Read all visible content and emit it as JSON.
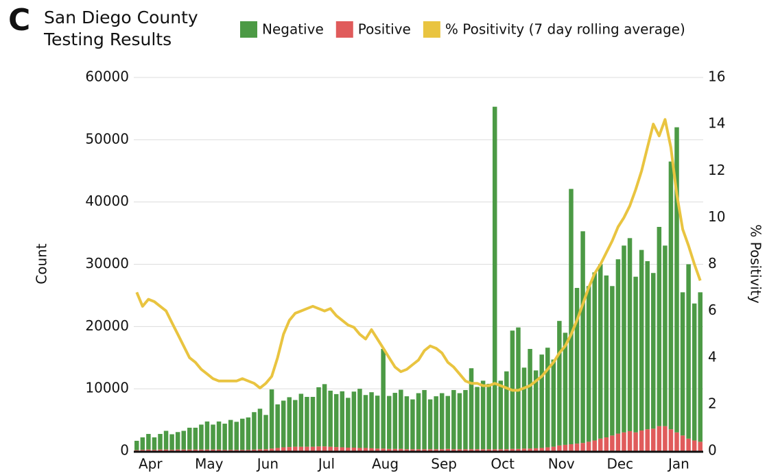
{
  "chart_data": {
    "type": "bar",
    "panel_label": "C",
    "title": "San Diego County Testing Results",
    "y_label": "Count",
    "y2_label": "% Positivity",
    "grid": true,
    "stacked": true,
    "categories": [
      "Apr",
      null,
      null,
      null,
      null,
      null,
      null,
      null,
      null,
      null,
      "May",
      null,
      null,
      null,
      null,
      null,
      null,
      null,
      null,
      null,
      "Jun",
      null,
      null,
      null,
      null,
      null,
      null,
      null,
      null,
      null,
      "Jul",
      null,
      null,
      null,
      null,
      null,
      null,
      null,
      null,
      null,
      "Aug",
      null,
      null,
      null,
      null,
      null,
      null,
      null,
      null,
      null,
      "Sep",
      null,
      null,
      null,
      null,
      null,
      null,
      null,
      null,
      null,
      "Oct",
      null,
      null,
      null,
      null,
      null,
      null,
      null,
      null,
      null,
      "Nov",
      null,
      null,
      null,
      null,
      null,
      null,
      null,
      null,
      null,
      "Dec",
      null,
      null,
      null,
      null,
      null,
      null,
      null,
      null,
      null,
      "Jan",
      null,
      null,
      null,
      null,
      null,
      null
    ],
    "series": [
      {
        "name": "Negative",
        "color": "#4c9a45",
        "values": [
          1500,
          2000,
          2500,
          2000,
          2500,
          3000,
          2500,
          2800,
          3000,
          3500,
          3500,
          4000,
          4500,
          4000,
          4500,
          4200,
          4800,
          4500,
          5000,
          5200,
          6000,
          6500,
          5500,
          9500,
          7000,
          7500,
          8000,
          7500,
          8500,
          8000,
          8000,
          9500,
          10000,
          9000,
          8500,
          9000,
          8000,
          9000,
          9500,
          8500,
          9000,
          8500,
          16000,
          8500,
          9000,
          9500,
          8500,
          8000,
          9000,
          9500,
          8000,
          8500,
          9000,
          8500,
          9500,
          9000,
          9500,
          13000,
          10000,
          11000,
          10500,
          55000,
          11000,
          12500,
          19000,
          19500,
          13000,
          16000,
          12500,
          15000,
          16000,
          14000,
          20000,
          18000,
          41000,
          25000,
          34000,
          25000,
          27000,
          28000,
          26000,
          24000,
          28000,
          30000,
          31000,
          25000,
          29000,
          27000,
          25000,
          32000,
          29000,
          43000,
          49000,
          23000,
          28000,
          22000,
          24000
        ]
      },
      {
        "name": "Positive",
        "color": "#e05b5b",
        "values": [
          150,
          200,
          250,
          200,
          250,
          250,
          200,
          250,
          250,
          250,
          250,
          250,
          250,
          250,
          250,
          200,
          200,
          200,
          200,
          200,
          250,
          300,
          300,
          400,
          500,
          600,
          650,
          700,
          700,
          700,
          700,
          750,
          750,
          700,
          650,
          600,
          550,
          550,
          500,
          500,
          450,
          400,
          400,
          350,
          350,
          350,
          300,
          300,
          300,
          300,
          300,
          300,
          300,
          350,
          300,
          300,
          300,
          300,
          300,
          300,
          300,
          300,
          300,
          300,
          350,
          350,
          400,
          400,
          450,
          500,
          600,
          700,
          900,
          1000,
          1100,
          1200,
          1300,
          1500,
          1700,
          2000,
          2200,
          2500,
          2800,
          3000,
          3200,
          3000,
          3300,
          3500,
          3600,
          4000,
          4000,
          3500,
          3000,
          2500,
          2000,
          1700,
          1500
        ]
      },
      {
        "name": "% Positivity (7 day rolling average)",
        "color": "#e9c440",
        "axis": "y2",
        "type": "line",
        "values": [
          6.8,
          6.2,
          6.5,
          6.4,
          6.2,
          6.0,
          5.5,
          5.0,
          4.5,
          4.0,
          3.8,
          3.5,
          3.3,
          3.1,
          3.0,
          3.0,
          3.0,
          3.0,
          3.1,
          3.0,
          2.9,
          2.7,
          2.9,
          3.2,
          4.0,
          5.0,
          5.6,
          5.9,
          6.0,
          6.1,
          6.2,
          6.1,
          6.0,
          6.1,
          5.8,
          5.6,
          5.4,
          5.3,
          5.0,
          4.8,
          5.2,
          4.8,
          4.4,
          4.0,
          3.6,
          3.4,
          3.5,
          3.7,
          3.9,
          4.3,
          4.5,
          4.4,
          4.2,
          3.8,
          3.6,
          3.3,
          3.0,
          2.9,
          2.9,
          2.8,
          2.8,
          2.9,
          2.8,
          2.7,
          2.6,
          2.6,
          2.7,
          2.8,
          3.0,
          3.2,
          3.5,
          3.8,
          4.2,
          4.5,
          5.0,
          5.6,
          6.3,
          7.0,
          7.6,
          8.0,
          8.5,
          9.0,
          9.6,
          10.0,
          10.5,
          11.2,
          12.0,
          13.0,
          14.0,
          13.5,
          14.2,
          13.0,
          11.0,
          9.5,
          8.8,
          8.0,
          7.3
        ]
      }
    ],
    "ylim": [
      0,
      60000
    ],
    "yticks": [
      0,
      10000,
      20000,
      30000,
      40000,
      50000,
      60000
    ],
    "y2lim": [
      0,
      16
    ],
    "y2ticks": [
      0,
      2,
      4,
      6,
      8,
      10,
      12,
      14,
      16
    ]
  }
}
